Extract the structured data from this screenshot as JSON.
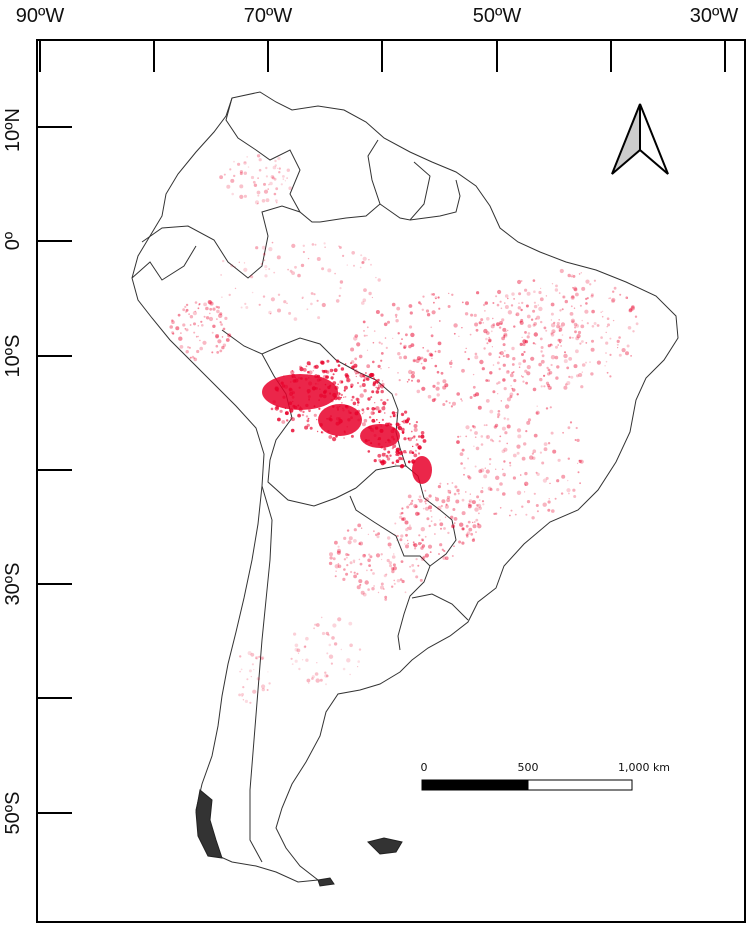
{
  "map": {
    "longitude_labels": [
      "90ºW",
      "70ºW",
      "50ºW",
      "30ºW"
    ],
    "latitude_labels": [
      "10ºN",
      "0º",
      "10ºS",
      "30ºS",
      "50ºS"
    ],
    "scale_bar": {
      "labels": [
        "0",
        "500",
        "1,000 km"
      ]
    },
    "north_arrow_icon": "north-arrow-icon",
    "colors": {
      "hotspot": "#e8002a",
      "border": "#333333",
      "frame": "#000000"
    }
  }
}
